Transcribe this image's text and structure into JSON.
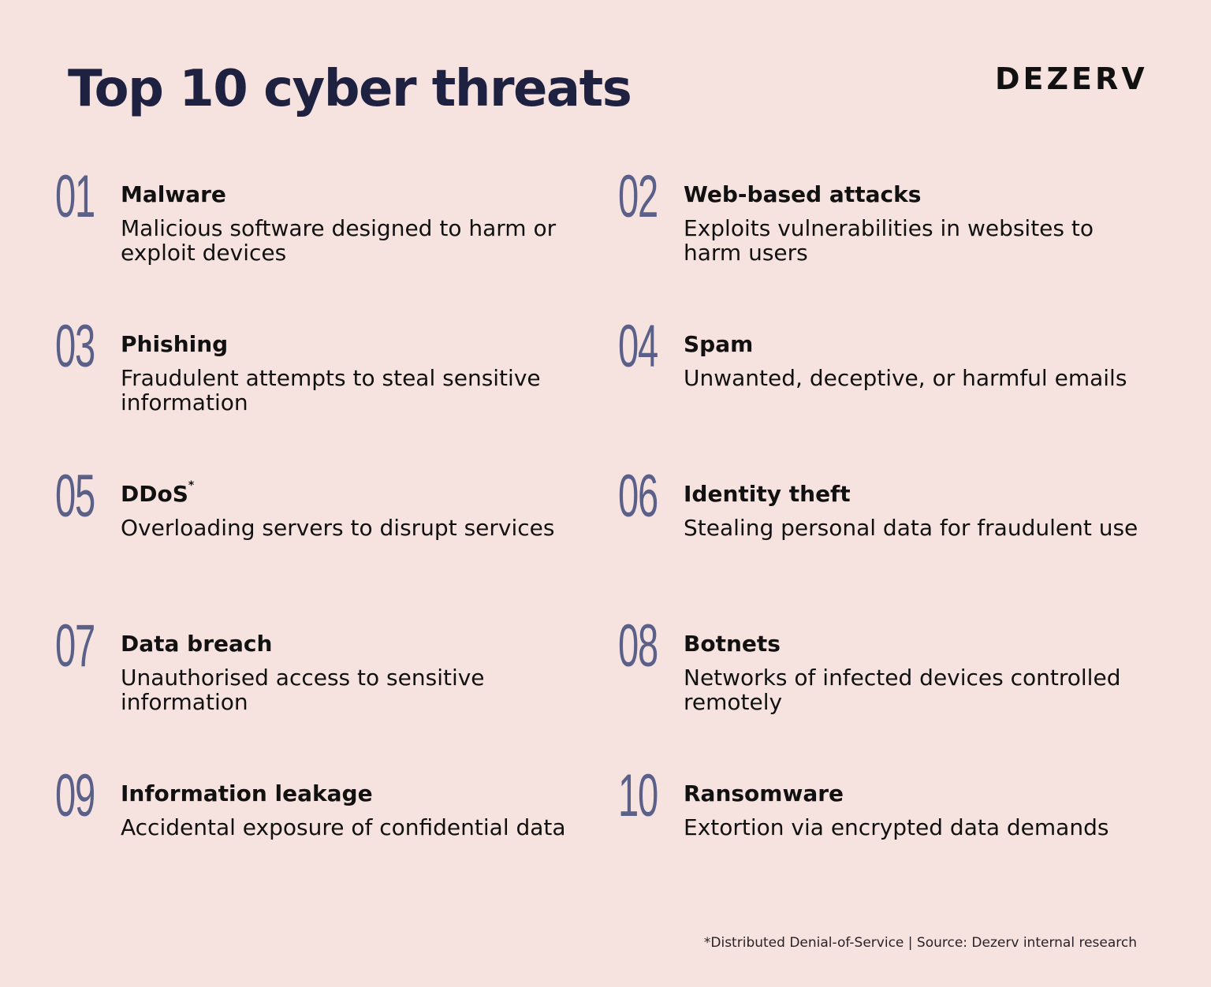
{
  "header": {
    "title": "Top 10 cyber threats",
    "logo": "DEZERV"
  },
  "items": [
    {
      "num": "01",
      "name": "Malware",
      "sup": "",
      "desc": "Malicious software designed to harm or exploit devices"
    },
    {
      "num": "02",
      "name": "Web-based attacks",
      "sup": "",
      "desc": "Exploits vulnerabilities in websites to harm users"
    },
    {
      "num": "03",
      "name": "Phishing",
      "sup": "",
      "desc": "Fraudulent attempts to steal sensitive information"
    },
    {
      "num": "04",
      "name": "Spam",
      "sup": "",
      "desc": "Unwanted, deceptive, or harmful emails"
    },
    {
      "num": "05",
      "name": "DDoS",
      "sup": "*",
      "desc": "Overloading servers to disrupt services"
    },
    {
      "num": "06",
      "name": "Identity theft",
      "sup": "",
      "desc": "Stealing personal data for fraudulent use"
    },
    {
      "num": "07",
      "name": "Data breach",
      "sup": "",
      "desc": "Unauthorised access to sensitive information"
    },
    {
      "num": "08",
      "name": "Botnets",
      "sup": "",
      "desc": "Networks of infected devices controlled remotely"
    },
    {
      "num": "09",
      "name": "Information leakage",
      "sup": "",
      "desc": "Accidental exposure of confidential data"
    },
    {
      "num": "10",
      "name": "Ransomware",
      "sup": "",
      "desc": "Extortion via encrypted data demands"
    }
  ],
  "footer": "*Distributed Denial-of-Service | Source: Dezerv internal research",
  "colors": {
    "background": "#f6e3df",
    "number": "#5a6088",
    "title": "#1f2140"
  }
}
